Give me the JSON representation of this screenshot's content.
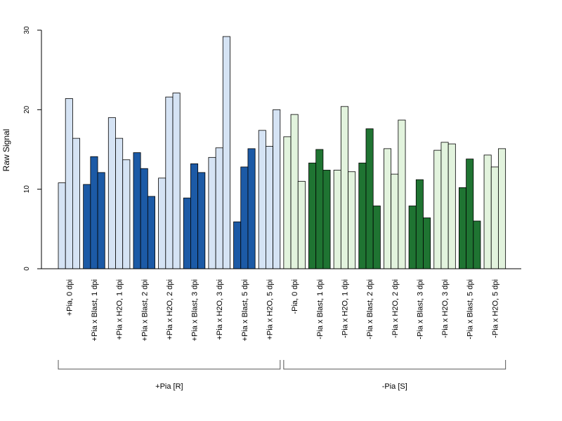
{
  "chart_data": {
    "type": "bar",
    "ylabel": "Raw Signal",
    "ylim": [
      0,
      30
    ],
    "yticks": [
      0,
      10,
      20,
      30
    ],
    "grid": false,
    "legend": "none",
    "colors": {
      "pia_plus_h2o": "#d5e3f4",
      "pia_plus_blast": "#1c5aa6",
      "pia_minus_h2o": "#e2f3dd",
      "pia_minus_blast": "#1f7432"
    },
    "categories": [
      {
        "label": "+Pia, 0 dpi",
        "values": [
          10.8,
          21.4,
          16.4
        ],
        "color_key": "pia_plus_h2o"
      },
      {
        "label": "+Pia x Blast, 1 dpi",
        "values": [
          10.6,
          14.1,
          12.1
        ],
        "color_key": "pia_plus_blast"
      },
      {
        "label": "+Pia x H2O, 1 dpi",
        "values": [
          19.0,
          16.4,
          13.7
        ],
        "color_key": "pia_plus_h2o"
      },
      {
        "label": "+Pia x Blast, 2 dpi",
        "values": [
          14.6,
          12.6,
          9.1
        ],
        "color_key": "pia_plus_blast"
      },
      {
        "label": "+Pia x H2O, 2 dpi",
        "values": [
          11.4,
          21.6,
          22.1
        ],
        "color_key": "pia_plus_h2o"
      },
      {
        "label": "+Pia x Blast, 3 dpi",
        "values": [
          8.9,
          13.2,
          12.1
        ],
        "color_key": "pia_plus_blast"
      },
      {
        "label": "+Pia x H2O, 3 dpi",
        "values": [
          14.0,
          15.2,
          29.2
        ],
        "color_key": "pia_plus_h2o"
      },
      {
        "label": "+Pia x Blast, 5 dpi",
        "values": [
          5.9,
          12.8,
          15.1
        ],
        "color_key": "pia_plus_blast"
      },
      {
        "label": "+Pia x H2O, 5 dpi",
        "values": [
          17.4,
          15.4,
          20.0
        ],
        "color_key": "pia_plus_h2o"
      },
      {
        "label": "-Pia, 0 dpi",
        "values": [
          16.6,
          19.4,
          11.0
        ],
        "color_key": "pia_minus_h2o"
      },
      {
        "label": "-Pia x Blast, 1 dpi",
        "values": [
          13.3,
          15.0,
          12.4
        ],
        "color_key": "pia_minus_blast"
      },
      {
        "label": "-Pia x H2O, 1 dpi",
        "values": [
          12.4,
          20.4,
          12.2
        ],
        "color_key": "pia_minus_h2o"
      },
      {
        "label": "-Pia x Blast, 2 dpi",
        "values": [
          13.3,
          17.6,
          7.9
        ],
        "color_key": "pia_minus_blast"
      },
      {
        "label": "-Pia x H2O, 2 dpi",
        "values": [
          15.1,
          11.9,
          18.7
        ],
        "color_key": "pia_minus_h2o"
      },
      {
        "label": "-Pia x Blast, 3 dpi",
        "values": [
          7.9,
          11.2,
          6.4
        ],
        "color_key": "pia_minus_blast"
      },
      {
        "label": "-Pia x H2O, 3 dpi",
        "values": [
          14.9,
          15.9,
          15.7
        ],
        "color_key": "pia_minus_h2o"
      },
      {
        "label": "-Pia x Blast, 5 dpi",
        "values": [
          10.2,
          13.8,
          6.0
        ],
        "color_key": "pia_minus_blast"
      },
      {
        "label": "-Pia x H2O, 5 dpi",
        "values": [
          14.3,
          12.8,
          15.1
        ],
        "color_key": "pia_minus_h2o"
      }
    ],
    "groups": [
      {
        "label": "+Pia [R]",
        "from": 0,
        "to": 8
      },
      {
        "label": "-Pia [S]",
        "from": 9,
        "to": 17
      }
    ]
  }
}
